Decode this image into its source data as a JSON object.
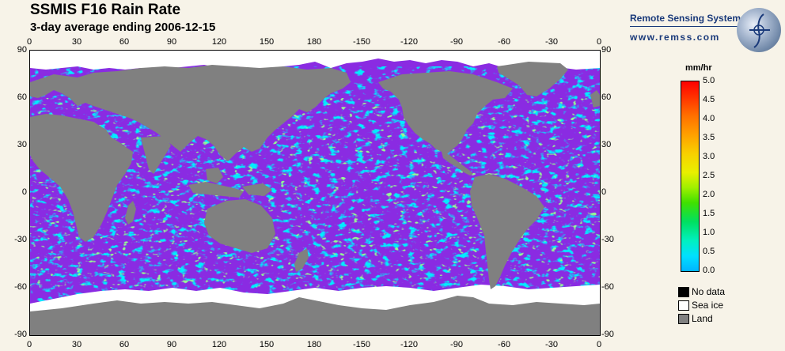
{
  "header": {
    "title": "SSMIS F16 Rain Rate",
    "subtitle": "3-day average ending 2006-12-15"
  },
  "brand": {
    "name": "Remote Sensing Systems",
    "url": "www.remss.com",
    "logo_icon": "globe-logo-icon"
  },
  "map": {
    "lon_ticks": [
      "0",
      "30",
      "60",
      "90",
      "120",
      "150",
      "180",
      "-150",
      "-120",
      "-90",
      "-60",
      "-30",
      "0"
    ],
    "lat_ticks": [
      "90",
      "60",
      "30",
      "0",
      "-30",
      "-60",
      "-90"
    ],
    "colors": {
      "ocean_no_rain": "#8a2be2",
      "land": "#808080",
      "sea_ice": "#ffffff",
      "no_data": "#000000"
    }
  },
  "colorbar": {
    "unit": "mm/hr",
    "ticks": [
      "5.0",
      "4.5",
      "4.0",
      "3.5",
      "3.0",
      "2.5",
      "2.0",
      "1.5",
      "1.0",
      "0.5",
      "0.0"
    ],
    "range": [
      0,
      5
    ]
  },
  "legend": {
    "items": [
      {
        "label": "No data",
        "color": "#000000"
      },
      {
        "label": "Sea ice",
        "color": "#ffffff"
      },
      {
        "label": "Land",
        "color": "#808080"
      }
    ]
  }
}
